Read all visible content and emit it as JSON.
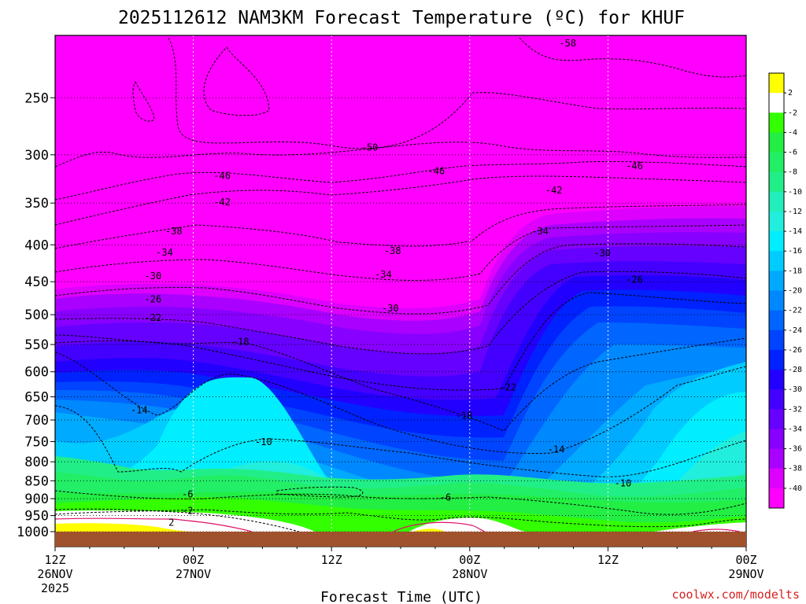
{
  "chart_data": {
    "type": "contour",
    "title": "2025112612 NAM3KM Forecast Temperature (ºC) for KHUF",
    "xlabel": "Forecast Time (UTC)",
    "ylabel": "",
    "credit": "coolwx.com/modelts",
    "x_ticks": [
      {
        "lines": [
          "12Z",
          "26NOV",
          "2025"
        ],
        "hour": 0
      },
      {
        "lines": [
          "00Z",
          "27NOV"
        ],
        "hour": 12
      },
      {
        "lines": [
          "12Z"
        ],
        "hour": 24
      },
      {
        "lines": [
          "00Z",
          "28NOV"
        ],
        "hour": 36
      },
      {
        "lines": [
          "12Z"
        ],
        "hour": 48
      },
      {
        "lines": [
          "00Z",
          "29NOV"
        ],
        "hour": 60
      }
    ],
    "y_ticks": [
      "250",
      "300",
      "350",
      "400",
      "450",
      "500",
      "550",
      "600",
      "650",
      "700",
      "750",
      "800",
      "850",
      "900",
      "950",
      "1000"
    ],
    "colorbar_labels": [
      "2",
      "-2",
      "-4",
      "-6",
      "-8",
      "-10",
      "-12",
      "-14",
      "-16",
      "-18",
      "-20",
      "-22",
      "-24",
      "-26",
      "-28",
      "-30",
      "-32",
      "-34",
      "-36",
      "-38",
      "-40"
    ],
    "colorbar_colors": [
      "#ffff00",
      "#ffffff",
      "#33ff00",
      "#22ee44",
      "#22ee66",
      "#22ee88",
      "#22eebb",
      "#22eedd",
      "#00eeff",
      "#00ccff",
      "#00aaff",
      "#0088ff",
      "#0066ff",
      "#0044ff",
      "#0022ff",
      "#2200ff",
      "#4400ff",
      "#6600ff",
      "#8800ff",
      "#aa00ff",
      "#dd00ff",
      "#ff00ff"
    ],
    "contour_labels": [
      {
        "text": "-58",
        "hour": 44.5,
        "p": 210
      },
      {
        "text": "-50",
        "hour": 27.3,
        "p": 293
      },
      {
        "text": "-46",
        "hour": 14.5,
        "p": 321
      },
      {
        "text": "-46",
        "hour": 33.1,
        "p": 316
      },
      {
        "text": "-46",
        "hour": 50.3,
        "p": 311
      },
      {
        "text": "-42",
        "hour": 14.5,
        "p": 349
      },
      {
        "text": "-42",
        "hour": 43.3,
        "p": 336
      },
      {
        "text": "-38",
        "hour": 10.3,
        "p": 383
      },
      {
        "text": "-38",
        "hour": 29.3,
        "p": 408
      },
      {
        "text": "-34",
        "hour": 9.5,
        "p": 410
      },
      {
        "text": "-34",
        "hour": 28.5,
        "p": 440
      },
      {
        "text": "-34",
        "hour": 42.1,
        "p": 383
      },
      {
        "text": "-30",
        "hour": 8.5,
        "p": 442
      },
      {
        "text": "-30",
        "hour": 29.1,
        "p": 490
      },
      {
        "text": "-30",
        "hour": 47.5,
        "p": 411
      },
      {
        "text": "-26",
        "hour": 8.5,
        "p": 476
      },
      {
        "text": "-26",
        "hour": 50.3,
        "p": 447
      },
      {
        "text": "-22",
        "hour": 8.5,
        "p": 505
      },
      {
        "text": "-22",
        "hour": 39.3,
        "p": 631
      },
      {
        "text": "-18",
        "hour": 16.1,
        "p": 545
      },
      {
        "text": "-18",
        "hour": 35.5,
        "p": 690
      },
      {
        "text": "-14",
        "hour": 7.3,
        "p": 678
      },
      {
        "text": "-14",
        "hour": 43.5,
        "p": 769
      },
      {
        "text": "-10",
        "hour": 18.1,
        "p": 751
      },
      {
        "text": "-10",
        "hour": 49.3,
        "p": 857
      },
      {
        "text": "-6",
        "hour": 11.5,
        "p": 888
      },
      {
        "text": "-6",
        "hour": 33.9,
        "p": 897
      },
      {
        "text": "-2",
        "hour": 11.5,
        "p": 935
      },
      {
        "text": "2",
        "hour": 10.1,
        "p": 972
      }
    ]
  }
}
